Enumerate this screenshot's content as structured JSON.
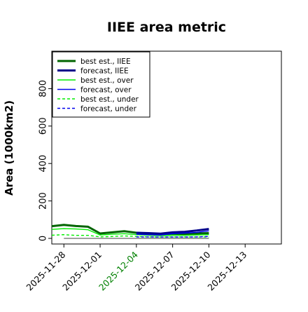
{
  "chart_data": {
    "type": "line",
    "title": "IIEE area metric",
    "ylabel": "Area (1000km2)",
    "xlabel": "",
    "ylim": [
      -30,
      1000
    ],
    "y_ticks": [
      "0",
      "200",
      "400",
      "600",
      "800"
    ],
    "y_tick_values": [
      0,
      200,
      400,
      600,
      800
    ],
    "x_ticks": [
      "2025-11-28",
      "2025-12-01",
      "2025-12-04",
      "2025-12-07",
      "2025-12-10",
      "2025-12-13"
    ],
    "x_tick_colors": [
      "#000000",
      "#000000",
      "#008000",
      "#000000",
      "#000000",
      "#000000"
    ],
    "x_day_start": "2025-11-27",
    "x_range_days": [
      0,
      19
    ],
    "x_tick_days": [
      1,
      4,
      7,
      10,
      13,
      16
    ],
    "grid": false,
    "legend_placement": "top-left",
    "series": [
      {
        "name": "best est., IIEE",
        "color": "#006400",
        "style": "solid",
        "width": 3,
        "x": [
          0,
          1,
          2,
          3,
          4,
          5,
          6,
          7,
          8,
          9,
          10,
          11,
          12,
          13
        ],
        "values": [
          65,
          72,
          66,
          62,
          26,
          32,
          38,
          30,
          25,
          22,
          25,
          24,
          26,
          28
        ]
      },
      {
        "name": "forecast, IIEE",
        "color": "#00008b",
        "style": "solid",
        "width": 3,
        "x": [
          7,
          8,
          9,
          10,
          11,
          12,
          13
        ],
        "values": [
          30,
          28,
          25,
          32,
          35,
          42,
          50
        ]
      },
      {
        "name": "best est., over",
        "color": "#00ee00",
        "style": "solid",
        "width": 1.4,
        "x": [
          0,
          1,
          2,
          3,
          4,
          5,
          6,
          7,
          8,
          9,
          10,
          11,
          12,
          13
        ],
        "values": [
          48,
          52,
          50,
          46,
          18,
          22,
          25,
          20,
          17,
          15,
          17,
          16,
          18,
          20
        ]
      },
      {
        "name": "forecast, over",
        "color": "#0000ee",
        "style": "solid",
        "width": 1.4,
        "x": [
          7,
          8,
          9,
          10,
          11,
          12,
          13
        ],
        "values": [
          22,
          20,
          18,
          25,
          28,
          32,
          40
        ]
      },
      {
        "name": "best est., under",
        "color": "#00ee00",
        "style": "dashed",
        "width": 1.4,
        "x": [
          0,
          1,
          2,
          3,
          4,
          5,
          6,
          7,
          8,
          9,
          10,
          11,
          12,
          13
        ],
        "values": [
          17,
          20,
          16,
          16,
          8,
          10,
          13,
          10,
          8,
          7,
          8,
          8,
          8,
          8
        ]
      },
      {
        "name": "forecast, under",
        "color": "#0000ee",
        "style": "dashed",
        "width": 1.4,
        "x": [
          7,
          8,
          9,
          10,
          11,
          12,
          13
        ],
        "values": [
          8,
          8,
          7,
          7,
          7,
          8,
          10
        ]
      }
    ],
    "baseline": {
      "color": "#000000",
      "width": 0.8,
      "x": [
        1,
        13
      ],
      "values": [
        0,
        0
      ]
    }
  }
}
